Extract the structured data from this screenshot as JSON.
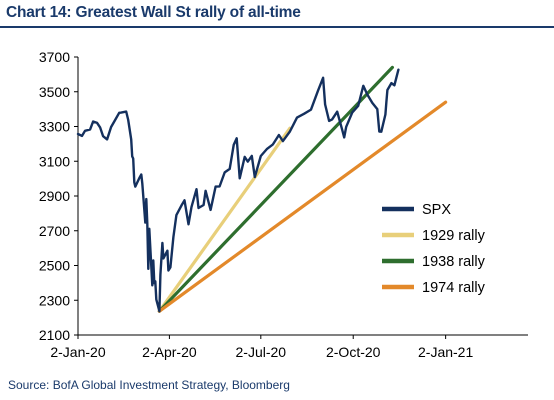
{
  "chart_data": {
    "type": "line",
    "title": "Chart 14: Greatest Wall St rally of all-time",
    "source": "Source: BofA Global Investment Strategy, Bloomberg",
    "xlabel": "",
    "ylabel": "",
    "xlim": [
      "2020-01-02",
      "2021-03-25"
    ],
    "ylim": [
      2100,
      3700
    ],
    "x_ticks": [
      "2-Jan-20",
      "2-Apr-20",
      "2-Jul-20",
      "2-Oct-20",
      "2-Jan-21"
    ],
    "x_tick_dates": [
      "2020-01-02",
      "2020-04-02",
      "2020-07-02",
      "2020-10-02",
      "2021-01-02"
    ],
    "y_ticks": [
      2100,
      2300,
      2500,
      2700,
      2900,
      3100,
      3300,
      3500,
      3700
    ],
    "grid": false,
    "legend_position": "lower-right",
    "series": [
      {
        "name": "SPX",
        "color": "#14305e",
        "style": "line",
        "points": [
          [
            "2020-01-02",
            3257
          ],
          [
            "2020-01-06",
            3246
          ],
          [
            "2020-01-09",
            3275
          ],
          [
            "2020-01-14",
            3283
          ],
          [
            "2020-01-17",
            3329
          ],
          [
            "2020-01-21",
            3321
          ],
          [
            "2020-01-24",
            3295
          ],
          [
            "2020-01-27",
            3244
          ],
          [
            "2020-01-31",
            3226
          ],
          [
            "2020-02-04",
            3297
          ],
          [
            "2020-02-07",
            3328
          ],
          [
            "2020-02-12",
            3379
          ],
          [
            "2020-02-14",
            3380
          ],
          [
            "2020-02-19",
            3386
          ],
          [
            "2020-02-21",
            3338
          ],
          [
            "2020-02-24",
            3226
          ],
          [
            "2020-02-25",
            3128
          ],
          [
            "2020-02-26",
            3116
          ],
          [
            "2020-02-27",
            2979
          ],
          [
            "2020-02-28",
            2954
          ],
          [
            "2020-03-03",
            3003
          ],
          [
            "2020-03-05",
            3024
          ],
          [
            "2020-03-06",
            2972
          ],
          [
            "2020-03-09",
            2747
          ],
          [
            "2020-03-10",
            2882
          ],
          [
            "2020-03-11",
            2741
          ],
          [
            "2020-03-12",
            2481
          ],
          [
            "2020-03-13",
            2711
          ],
          [
            "2020-03-16",
            2386
          ],
          [
            "2020-03-17",
            2529
          ],
          [
            "2020-03-18",
            2398
          ],
          [
            "2020-03-19",
            2409
          ],
          [
            "2020-03-20",
            2305
          ],
          [
            "2020-03-23",
            2237
          ],
          [
            "2020-03-24",
            2447
          ],
          [
            "2020-03-26",
            2630
          ],
          [
            "2020-03-27",
            2541
          ],
          [
            "2020-03-31",
            2585
          ],
          [
            "2020-04-01",
            2471
          ],
          [
            "2020-04-03",
            2489
          ],
          [
            "2020-04-06",
            2664
          ],
          [
            "2020-04-09",
            2790
          ],
          [
            "2020-04-14",
            2846
          ],
          [
            "2020-04-17",
            2875
          ],
          [
            "2020-04-21",
            2737
          ],
          [
            "2020-04-24",
            2837
          ],
          [
            "2020-04-29",
            2939
          ],
          [
            "2020-05-01",
            2831
          ],
          [
            "2020-05-06",
            2848
          ],
          [
            "2020-05-08",
            2930
          ],
          [
            "2020-05-13",
            2820
          ],
          [
            "2020-05-18",
            2954
          ],
          [
            "2020-05-22",
            2955
          ],
          [
            "2020-05-27",
            3036
          ],
          [
            "2020-06-01",
            3056
          ],
          [
            "2020-06-05",
            3194
          ],
          [
            "2020-06-08",
            3232
          ],
          [
            "2020-06-11",
            3002
          ],
          [
            "2020-06-16",
            3125
          ],
          [
            "2020-06-19",
            3098
          ],
          [
            "2020-06-23",
            3131
          ],
          [
            "2020-06-26",
            3009
          ],
          [
            "2020-07-02",
            3130
          ],
          [
            "2020-07-08",
            3170
          ],
          [
            "2020-07-14",
            3197
          ],
          [
            "2020-07-20",
            3251
          ],
          [
            "2020-07-24",
            3216
          ],
          [
            "2020-07-31",
            3271
          ],
          [
            "2020-08-07",
            3351
          ],
          [
            "2020-08-14",
            3373
          ],
          [
            "2020-08-21",
            3397
          ],
          [
            "2020-08-28",
            3508
          ],
          [
            "2020-09-02",
            3580
          ],
          [
            "2020-09-04",
            3427
          ],
          [
            "2020-09-08",
            3332
          ],
          [
            "2020-09-11",
            3341
          ],
          [
            "2020-09-16",
            3385
          ],
          [
            "2020-09-21",
            3281
          ],
          [
            "2020-09-23",
            3237
          ],
          [
            "2020-09-25",
            3298
          ],
          [
            "2020-10-01",
            3380
          ],
          [
            "2020-10-07",
            3419
          ],
          [
            "2020-10-12",
            3534
          ],
          [
            "2020-10-16",
            3484
          ],
          [
            "2020-10-21",
            3436
          ],
          [
            "2020-10-26",
            3400
          ],
          [
            "2020-10-28",
            3271
          ],
          [
            "2020-10-30",
            3270
          ],
          [
            "2020-11-03",
            3369
          ],
          [
            "2020-11-04",
            3443
          ],
          [
            "2020-11-05",
            3510
          ],
          [
            "2020-11-09",
            3550
          ],
          [
            "2020-11-12",
            3537
          ],
          [
            "2020-11-16",
            3627
          ]
        ]
      },
      {
        "name": "1929 rally",
        "color": "#e8cf7a",
        "style": "line",
        "points": [
          [
            "2020-03-23",
            2237
          ],
          [
            "2020-07-31",
            3290
          ]
        ]
      },
      {
        "name": "1938 rally",
        "color": "#2e6e2e",
        "style": "line",
        "points": [
          [
            "2020-03-23",
            2237
          ],
          [
            "2020-11-10",
            3640
          ]
        ]
      },
      {
        "name": "1974 rally",
        "color": "#e3892a",
        "style": "line",
        "points": [
          [
            "2020-03-23",
            2237
          ],
          [
            "2021-01-02",
            3440
          ]
        ]
      }
    ]
  }
}
